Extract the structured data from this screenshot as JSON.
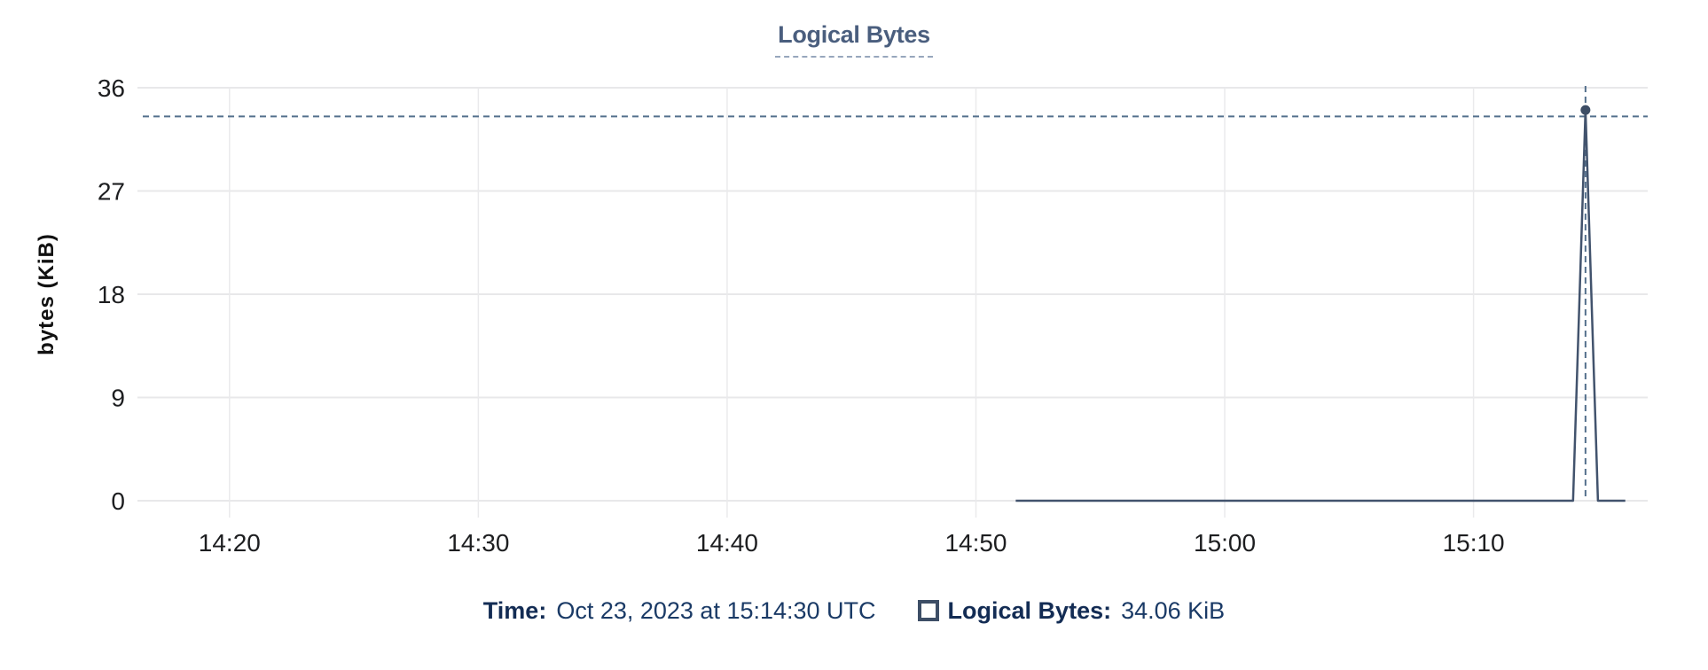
{
  "header": {
    "title": "Logical Bytes"
  },
  "chart_data": {
    "type": "line",
    "title": "Logical Bytes",
    "xlabel": "",
    "ylabel": "bytes (KiB)",
    "ylim": [
      0,
      36
    ],
    "y_ticks": [
      0,
      9,
      18,
      27,
      36
    ],
    "x_ticks": [
      {
        "minutes_after_1400": 20,
        "label": "14:20"
      },
      {
        "minutes_after_1400": 30,
        "label": "14:30"
      },
      {
        "minutes_after_1400": 40,
        "label": "14:40"
      },
      {
        "minutes_after_1400": 50,
        "label": "14:50"
      },
      {
        "minutes_after_1400": 60,
        "label": "15:00"
      },
      {
        "minutes_after_1400": 70,
        "label": "15:10"
      }
    ],
    "x_domain_minutes_after_1400": [
      16.3,
      77.0
    ],
    "grid": true,
    "legend_position": "bottom-tooltip",
    "series": [
      {
        "name": "Logical Bytes",
        "points_minutes_kib": [
          [
            51.6,
            0
          ],
          [
            74.0,
            0
          ],
          [
            74.5,
            34.06
          ],
          [
            75.0,
            0
          ],
          [
            76.1,
            0
          ]
        ],
        "peak": {
          "time_label": "15:14:30 UTC",
          "value_kib": 34.06
        }
      }
    ],
    "crosshair": {
      "x_minutes_after_1400": 74.5,
      "y_kib": 33.5,
      "highlight_value_kib": 34.06
    }
  },
  "tooltip": {
    "time_label": "Time:",
    "time_value": "Oct 23, 2023 at 15:14:30 UTC",
    "series_label": "Logical Bytes:",
    "series_value": "34.06 KiB"
  },
  "colors": {
    "line": "#42536d",
    "point": "#3d4e66",
    "crosshair": "#54708c",
    "grid_h": "#e8e8ea",
    "grid_v": "#eaeaec",
    "title_text": "#4a5e7e",
    "title_underline": "#97a6bc",
    "tick_text": "#1d1e20",
    "axis_title_text": "#111111",
    "tooltip_label": "#132c54",
    "tooltip_value": "#1a3a66",
    "swatch_border": "#3d4e66"
  }
}
